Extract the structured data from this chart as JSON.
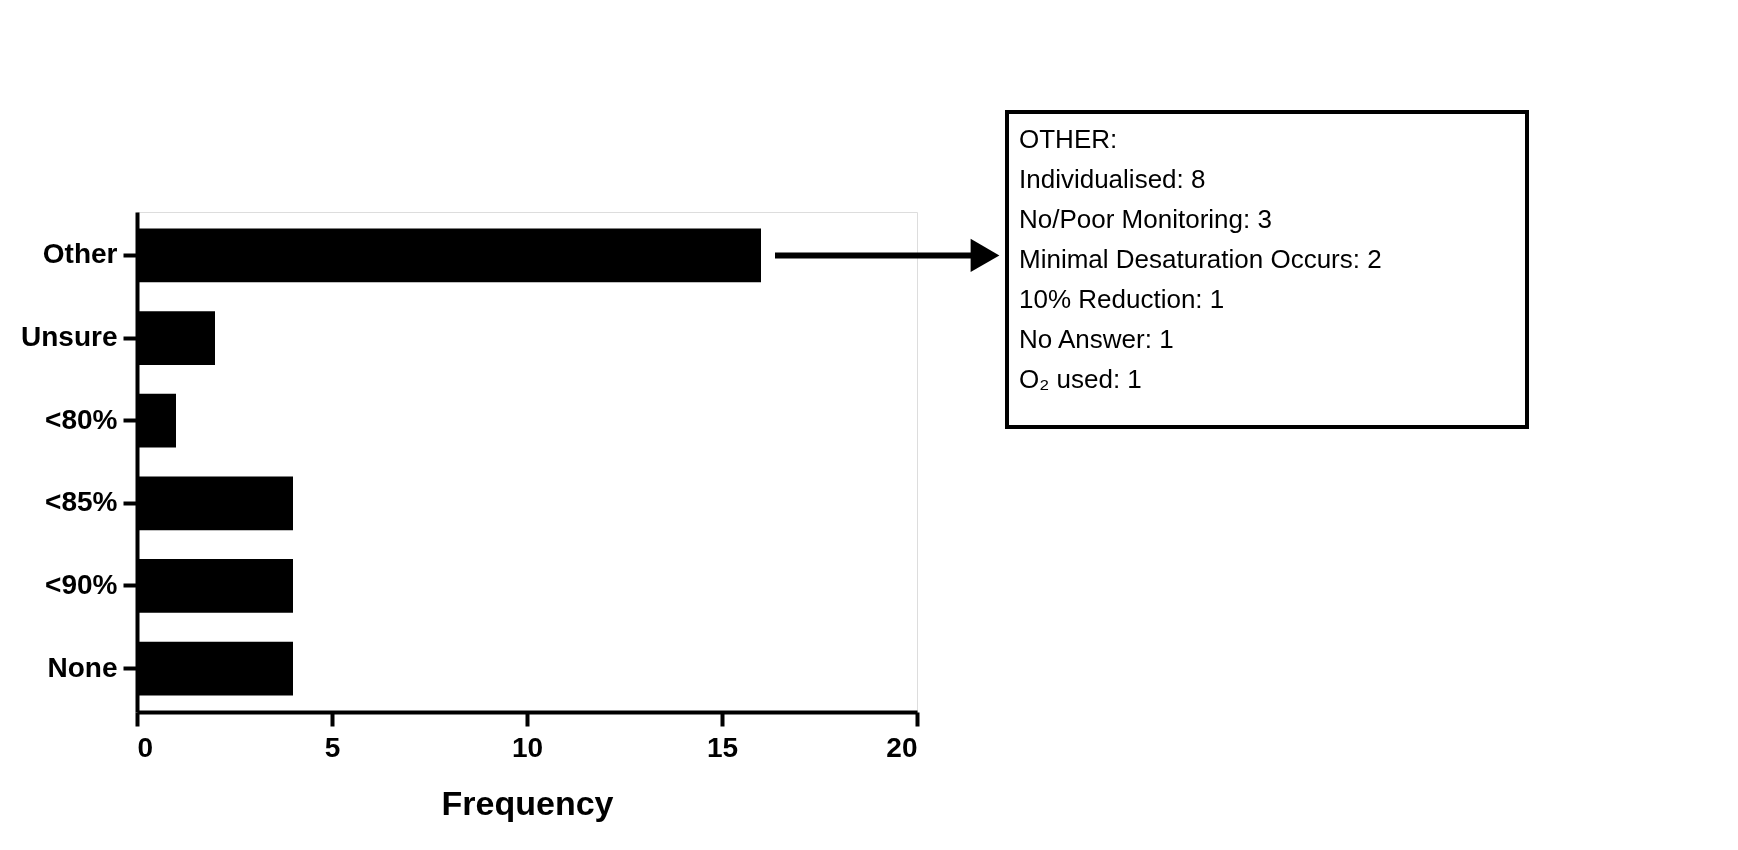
{
  "chart_data": {
    "type": "bar",
    "orientation": "horizontal",
    "categories": [
      "Other",
      "Unsure",
      "<80%",
      "<85%",
      "<90%",
      "None"
    ],
    "values": [
      16,
      2,
      1,
      4,
      4,
      4
    ],
    "color": "#000000",
    "xlim": [
      0,
      20
    ],
    "xticks": [
      0,
      5,
      10,
      15,
      20
    ],
    "xlabel": "Frequency",
    "grid": false,
    "legend": false,
    "annotations": [
      "OTHER:\nIndividualised: 8\nNo/Poor Monitoring: 3\nMinimal Desaturation Occurs: 2\n10% Reduction: 1\nNo  Answer: 1\nO₂ used: 1"
    ]
  }
}
